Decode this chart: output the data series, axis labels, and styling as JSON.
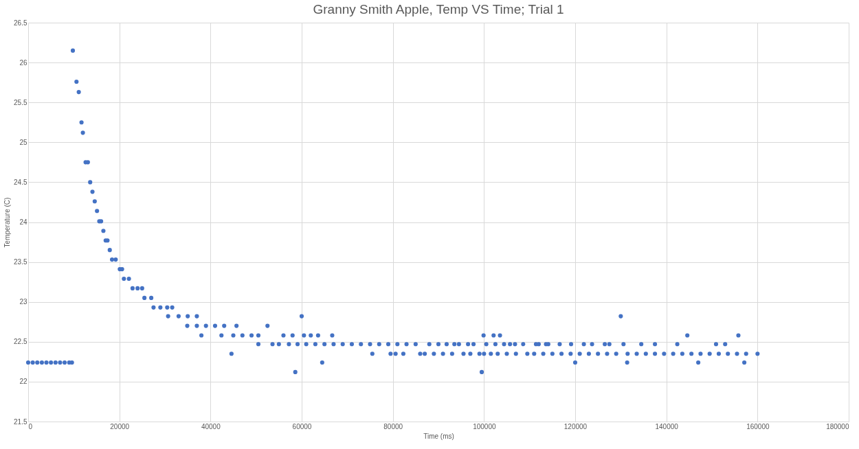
{
  "chart_data": {
    "type": "scatter",
    "title": "Granny Smith Apple, Temp VS Time; Trial 1",
    "xlabel": "Time (ms)",
    "ylabel": "Temperature (C)",
    "xlim": [
      0,
      180000
    ],
    "xticks": [
      0,
      20000,
      40000,
      60000,
      80000,
      100000,
      120000,
      140000,
      160000,
      180000
    ],
    "ylim": [
      21.5,
      26.5
    ],
    "yticks": [
      21.5,
      22,
      22.5,
      23,
      23.5,
      24,
      24.5,
      25,
      25.5,
      26,
      26.5
    ],
    "grid": true,
    "marker": "circle",
    "series": [
      {
        "color": "#4472c4",
        "x": [
          0,
          1000,
          2000,
          3000,
          4000,
          5000,
          6000,
          7000,
          8000,
          9000,
          9600,
          9800,
          10600,
          11100,
          11700,
          12000,
          12600,
          13100,
          13600,
          14100,
          14600,
          15100,
          15600,
          16000,
          16500,
          17000,
          17400,
          17900,
          18400,
          19200,
          20100,
          20600,
          21000,
          22100,
          22900,
          24000,
          25000,
          25500,
          27000,
          27500,
          29000,
          30500,
          31600,
          30700,
          33000,
          35000,
          37000,
          34900,
          37000,
          39000,
          41000,
          43000,
          38000,
          42400,
          45000,
          47000,
          49000,
          50500,
          44600,
          45700,
          52500,
          50500,
          53600,
          55000,
          57200,
          56000,
          58000,
          58600,
          59100,
          60000,
          60500,
          62000,
          63600,
          64500,
          66700,
          61000,
          63000,
          65000,
          67000,
          69000,
          71000,
          73000,
          75000,
          77000,
          79000,
          81000,
          83000,
          85000,
          75500,
          79500,
          80600,
          82300,
          86000,
          87000,
          88000,
          90000,
          91800,
          93500,
          94500,
          96500,
          97700,
          100500,
          102500,
          104400,
          105700,
          106800,
          108600,
          111400,
          112000,
          113600,
          114100,
          116600,
          119100,
          121900,
          123700,
          126500,
          127500,
          130600,
          134500,
          137500,
          142400,
          150900,
          152900,
          89000,
          91000,
          93000,
          95500,
          97000,
          99000,
          100000,
          101500,
          103000,
          105000,
          107000,
          109500,
          111000,
          113000,
          115000,
          117000,
          119000,
          121000,
          123000,
          125000,
          127000,
          129000,
          131500,
          133500,
          135500,
          137500,
          139500,
          141500,
          143500,
          145500,
          147500,
          149500,
          151500,
          153500,
          155500,
          157500,
          160000,
          99900,
          102100,
          103500,
          144600,
          155800,
          130000,
          120000,
          131400,
          147000,
          157100,
          99500
        ],
        "values": [
          22.24,
          22.24,
          22.24,
          22.24,
          22.24,
          22.24,
          22.24,
          22.24,
          22.24,
          22.24,
          22.24,
          26.15,
          25.76,
          25.63,
          25.25,
          25.12,
          24.75,
          24.75,
          24.5,
          24.38,
          24.26,
          24.14,
          24.01,
          24.01,
          23.89,
          23.77,
          23.77,
          23.65,
          23.53,
          23.53,
          23.41,
          23.41,
          23.29,
          23.29,
          23.17,
          23.17,
          23.17,
          23.05,
          23.05,
          22.93,
          22.93,
          22.93,
          22.93,
          22.82,
          22.82,
          22.82,
          22.82,
          22.7,
          22.7,
          22.7,
          22.7,
          22.7,
          22.58,
          22.58,
          22.58,
          22.58,
          22.58,
          22.58,
          22.35,
          22.7,
          22.7,
          22.47,
          22.47,
          22.47,
          22.47,
          22.58,
          22.58,
          22.12,
          22.47,
          22.82,
          22.58,
          22.58,
          22.58,
          22.24,
          22.58,
          22.47,
          22.47,
          22.47,
          22.47,
          22.47,
          22.47,
          22.47,
          22.47,
          22.47,
          22.47,
          22.47,
          22.47,
          22.47,
          22.35,
          22.35,
          22.35,
          22.35,
          22.35,
          22.35,
          22.47,
          22.47,
          22.47,
          22.47,
          22.47,
          22.47,
          22.47,
          22.47,
          22.47,
          22.47,
          22.47,
          22.47,
          22.47,
          22.47,
          22.47,
          22.47,
          22.47,
          22.47,
          22.47,
          22.47,
          22.47,
          22.47,
          22.47,
          22.47,
          22.47,
          22.47,
          22.47,
          22.47,
          22.47,
          22.35,
          22.35,
          22.35,
          22.35,
          22.35,
          22.35,
          22.35,
          22.35,
          22.35,
          22.35,
          22.35,
          22.35,
          22.35,
          22.35,
          22.35,
          22.35,
          22.35,
          22.35,
          22.35,
          22.35,
          22.35,
          22.35,
          22.35,
          22.35,
          22.35,
          22.35,
          22.35,
          22.35,
          22.35,
          22.35,
          22.35,
          22.35,
          22.35,
          22.35,
          22.35,
          22.35,
          22.35,
          22.58,
          22.58,
          22.58,
          22.58,
          22.58,
          22.82,
          22.24,
          22.24,
          22.24,
          22.24,
          22.12
        ]
      }
    ]
  }
}
